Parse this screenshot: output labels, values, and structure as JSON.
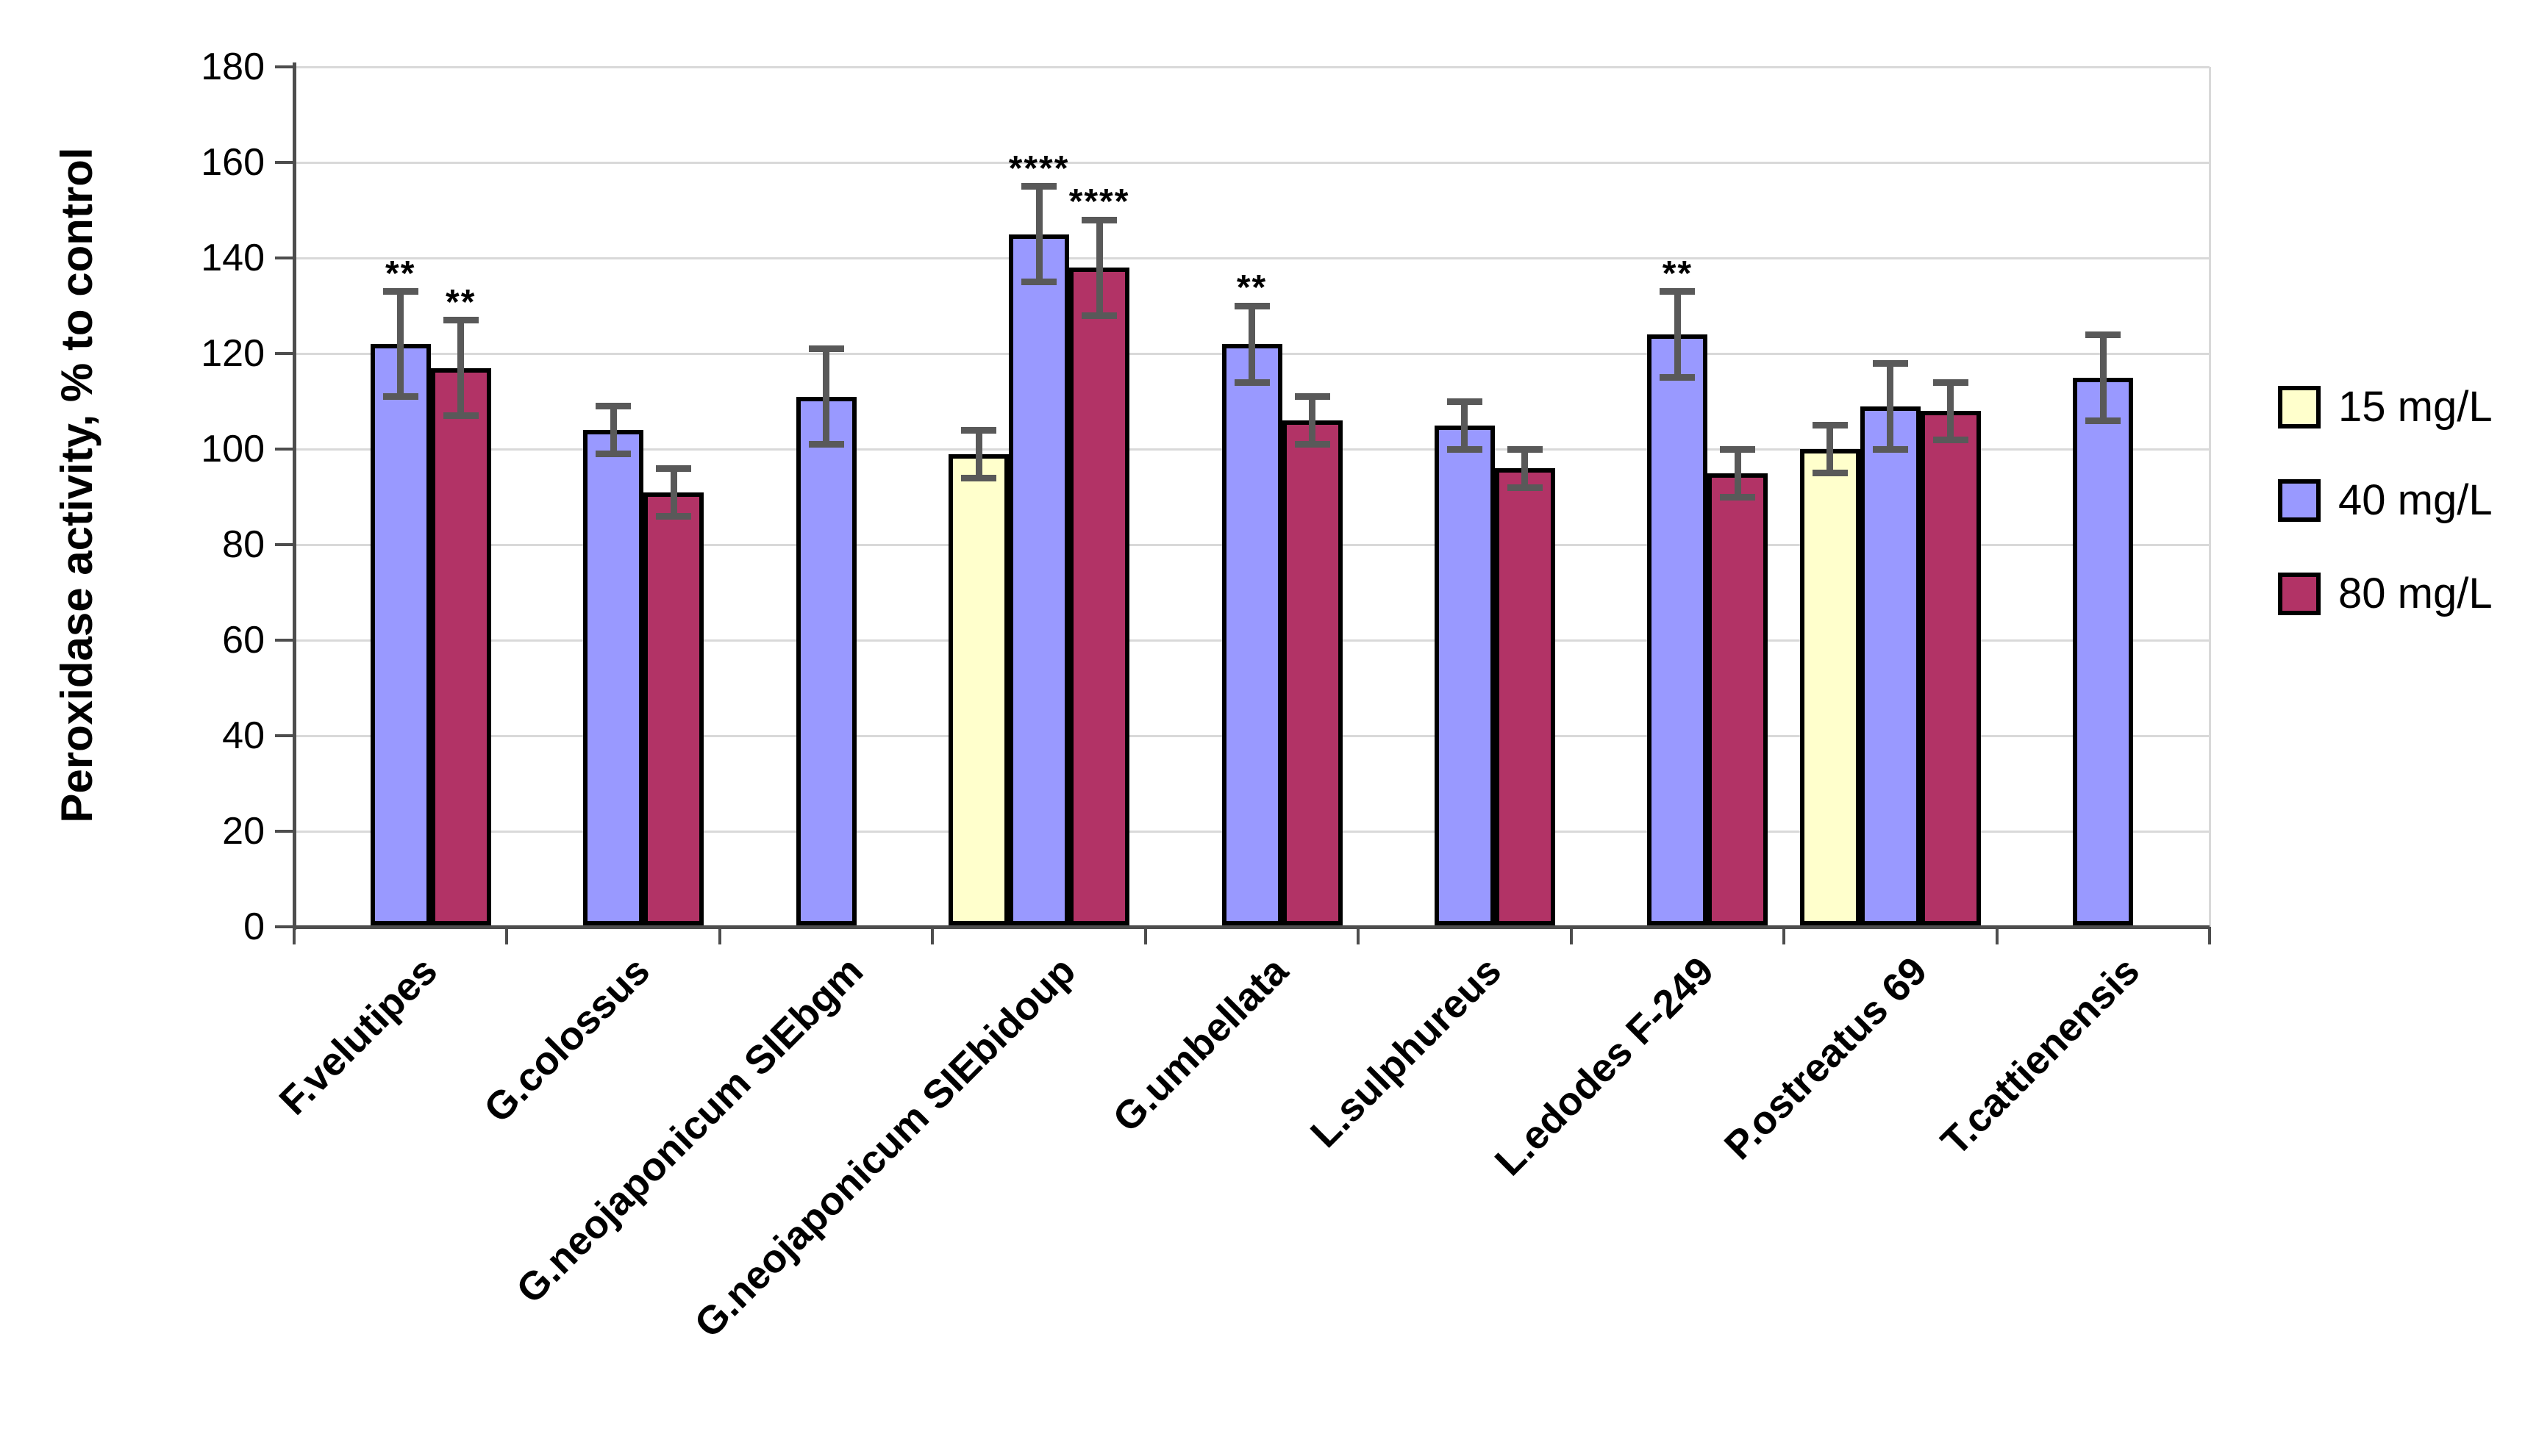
{
  "chart_data": {
    "type": "bar",
    "title": "",
    "xlabel": "",
    "ylabel": "Peroxidase activity, % to control",
    "ylim": [
      0,
      180
    ],
    "ytick_step": 20,
    "yticks": [
      0,
      20,
      40,
      60,
      80,
      100,
      120,
      140,
      160,
      180
    ],
    "grid": true,
    "legend_position": "right",
    "categories": [
      "F.velutipes",
      "G.colossus",
      "G.neojaponicum SIEbgm",
      "G.neojaponicum SIEbidoup",
      "G.umbellata",
      "L.sulphureus",
      "L.edodes F-249",
      "P.ostreatus 69",
      "T.cattienensis"
    ],
    "series": [
      {
        "name": "15 mg/L",
        "color": "#FFFFCC",
        "values": [
          null,
          null,
          null,
          99,
          null,
          null,
          null,
          100,
          null
        ],
        "errors": [
          null,
          null,
          null,
          5,
          null,
          null,
          null,
          5,
          null
        ],
        "sig": [
          null,
          null,
          null,
          null,
          null,
          null,
          null,
          null,
          null
        ]
      },
      {
        "name": "40 mg/L",
        "color": "#9999FF",
        "values": [
          122,
          104,
          111,
          145,
          122,
          105,
          124,
          109,
          115
        ],
        "errors": [
          11,
          5,
          10,
          10,
          8,
          5,
          9,
          9,
          9
        ],
        "sig": [
          "**",
          null,
          null,
          "****",
          "**",
          null,
          "**",
          null,
          null
        ]
      },
      {
        "name": "80 mg/L",
        "color": "#B23366",
        "values": [
          117,
          91,
          null,
          138,
          106,
          96,
          95,
          108,
          null
        ],
        "errors": [
          10,
          5,
          null,
          10,
          5,
          4,
          5,
          6,
          null
        ],
        "sig": [
          "**",
          null,
          null,
          "****",
          null,
          null,
          null,
          null,
          null
        ]
      }
    ],
    "styles": {
      "bar_border_color": "#000000",
      "error_bar_color": "#595959",
      "gridline_color": "#D9D9D9",
      "axis_color": "#4D4D4D",
      "text_color": "#000000",
      "background": "#FFFFFF"
    }
  }
}
